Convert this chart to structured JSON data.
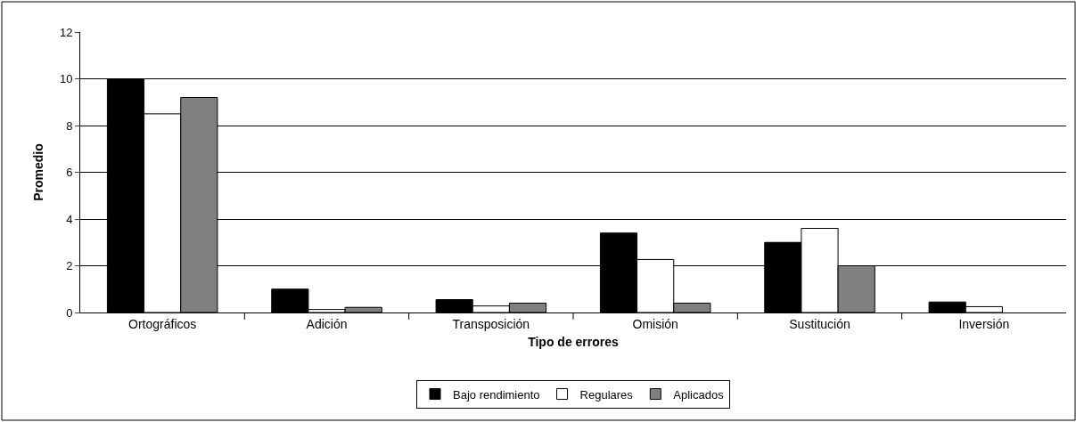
{
  "chart_data": {
    "type": "bar",
    "xlabel": "Tipo de errores",
    "ylabel": "Promedio",
    "categories": [
      "Ortográficos",
      "Adición",
      "Transposición",
      "Omisión",
      "Sustitución",
      "Inversión"
    ],
    "series": [
      {
        "name": "Bajo rendimiento",
        "color": "#000000",
        "values": [
          10,
          1.0,
          0.55,
          3.4,
          3.0,
          0.45
        ]
      },
      {
        "name": "Regulares",
        "color": "#ffffff",
        "values": [
          8.5,
          0.13,
          0.28,
          2.27,
          3.6,
          0.25
        ]
      },
      {
        "name": "Aplicados",
        "color": "#808080",
        "values": [
          9.2,
          0.22,
          0.4,
          0.4,
          2.0,
          null
        ]
      }
    ],
    "ylim": [
      0,
      12
    ],
    "yticks": [
      0,
      2,
      4,
      6,
      8,
      10,
      12
    ],
    "grid": "y",
    "legend": "bottom"
  }
}
